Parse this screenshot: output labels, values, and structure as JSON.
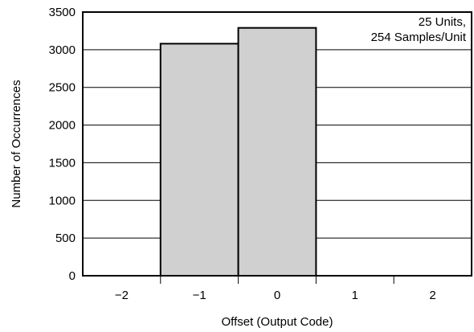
{
  "chart_data": {
    "type": "bar",
    "categories": [
      "−2",
      "−1",
      "0",
      "1",
      "2"
    ],
    "values": [
      0,
      3080,
      3290,
      0,
      0
    ],
    "xlabel": "Offset (Output Code)",
    "ylabel": "Number of Occurrences",
    "ylim": [
      0,
      3500
    ],
    "yticks": [
      "0",
      "500",
      "1000",
      "1500",
      "2000",
      "2500",
      "3000",
      "3500"
    ],
    "grid": true,
    "annotation": [
      "25 Units,",
      "254 Samples/Unit"
    ],
    "colors": {
      "bar_fill": "#d0d0d0",
      "bar_stroke": "#000000",
      "grid": "#000000"
    }
  }
}
